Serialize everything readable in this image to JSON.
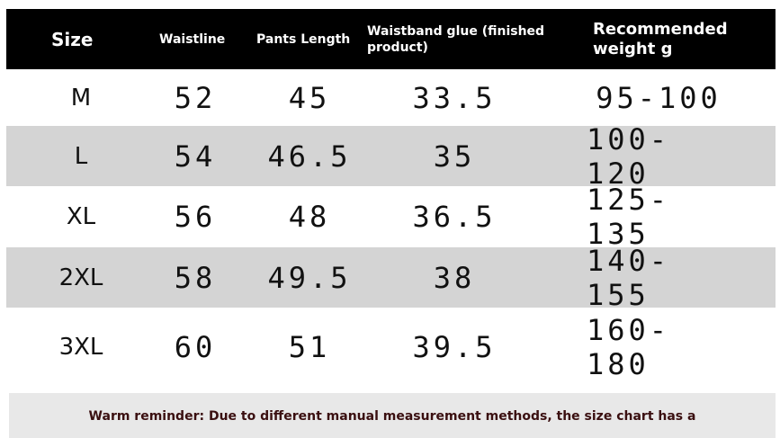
{
  "table": {
    "header": [
      "Size",
      "Waistline",
      "Pants Length",
      "Waistband glue (finished product)",
      "Recommended weight g"
    ],
    "rows": [
      [
        "M",
        "52",
        "45",
        "33.5",
        "95-100"
      ],
      [
        "L",
        "54",
        "46.5",
        "35",
        "100-120"
      ],
      [
        "XL",
        "56",
        "48",
        "36.5",
        "125-135"
      ],
      [
        "2XL",
        "58",
        "49.5",
        "38",
        "140-155"
      ],
      [
        "3XL",
        "60",
        "51",
        "39.5",
        "160-180"
      ]
    ]
  },
  "footer": {
    "text": "Warm reminder: Due to different manual measurement methods, the size chart has a"
  }
}
